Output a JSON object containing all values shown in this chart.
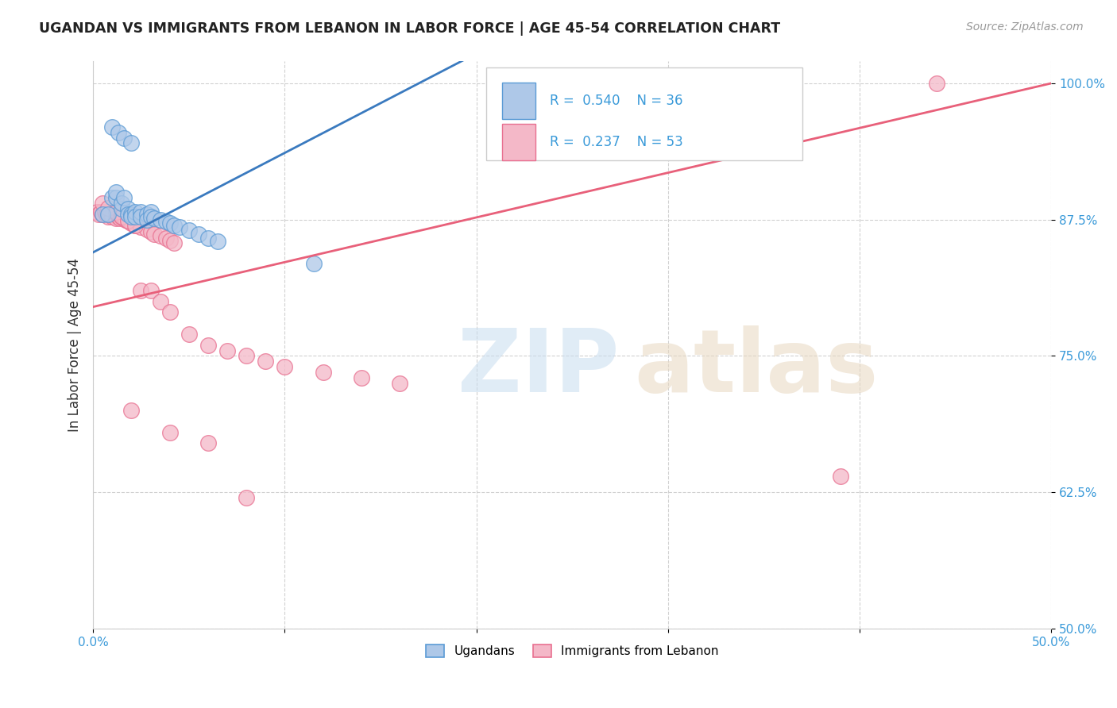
{
  "title": "UGANDAN VS IMMIGRANTS FROM LEBANON IN LABOR FORCE | AGE 45-54 CORRELATION CHART",
  "source_text": "Source: ZipAtlas.com",
  "ylabel": "In Labor Force | Age 45-54",
  "xlim": [
    0.0,
    0.5
  ],
  "ylim": [
    0.5,
    1.02
  ],
  "ytick_positions": [
    0.5,
    0.625,
    0.75,
    0.875,
    1.0
  ],
  "yticklabels": [
    "50.0%",
    "62.5%",
    "75.0%",
    "87.5%",
    "100.0%"
  ],
  "xtick_positions": [
    0.0,
    0.1,
    0.2,
    0.3,
    0.4,
    0.5
  ],
  "xticklabels": [
    "0.0%",
    "",
    "",
    "",
    "",
    "50.0%"
  ],
  "blue_R": 0.54,
  "blue_N": 36,
  "pink_R": 0.237,
  "pink_N": 53,
  "blue_color": "#aec8e8",
  "pink_color": "#f4b8c8",
  "blue_edge_color": "#5b9bd5",
  "pink_edge_color": "#e87090",
  "blue_line_color": "#3a7abf",
  "pink_line_color": "#e8607a",
  "legend_labels": [
    "Ugandans",
    "Immigrants from Lebanon"
  ],
  "blue_scatter_x": [
    0.005,
    0.008,
    0.01,
    0.012,
    0.012,
    0.015,
    0.015,
    0.016,
    0.018,
    0.018,
    0.02,
    0.02,
    0.022,
    0.022,
    0.025,
    0.025,
    0.028,
    0.028,
    0.03,
    0.03,
    0.032,
    0.035,
    0.038,
    0.04,
    0.042,
    0.045,
    0.05,
    0.055,
    0.06,
    0.065,
    0.01,
    0.013,
    0.016,
    0.02,
    0.115,
    0.27
  ],
  "blue_scatter_y": [
    0.88,
    0.88,
    0.895,
    0.895,
    0.9,
    0.885,
    0.89,
    0.895,
    0.885,
    0.88,
    0.88,
    0.878,
    0.882,
    0.878,
    0.882,
    0.878,
    0.88,
    0.875,
    0.882,
    0.878,
    0.876,
    0.875,
    0.873,
    0.872,
    0.87,
    0.868,
    0.865,
    0.862,
    0.858,
    0.855,
    0.96,
    0.955,
    0.95,
    0.945,
    0.835,
    0.97
  ],
  "pink_scatter_x": [
    0.002,
    0.003,
    0.004,
    0.005,
    0.006,
    0.007,
    0.008,
    0.009,
    0.01,
    0.01,
    0.012,
    0.013,
    0.014,
    0.015,
    0.016,
    0.017,
    0.018,
    0.019,
    0.02,
    0.022,
    0.025,
    0.028,
    0.03,
    0.032,
    0.035,
    0.038,
    0.04,
    0.042,
    0.005,
    0.008,
    0.012,
    0.015,
    0.018,
    0.022,
    0.025,
    0.03,
    0.035,
    0.04,
    0.05,
    0.06,
    0.07,
    0.08,
    0.09,
    0.1,
    0.12,
    0.14,
    0.16,
    0.02,
    0.04,
    0.06,
    0.08,
    0.44,
    0.39
  ],
  "pink_scatter_y": [
    0.882,
    0.88,
    0.882,
    0.88,
    0.882,
    0.88,
    0.878,
    0.88,
    0.88,
    0.878,
    0.876,
    0.878,
    0.876,
    0.878,
    0.876,
    0.875,
    0.874,
    0.873,
    0.872,
    0.87,
    0.868,
    0.866,
    0.864,
    0.862,
    0.86,
    0.858,
    0.856,
    0.854,
    0.89,
    0.886,
    0.882,
    0.878,
    0.874,
    0.87,
    0.81,
    0.81,
    0.8,
    0.79,
    0.77,
    0.76,
    0.755,
    0.75,
    0.745,
    0.74,
    0.735,
    0.73,
    0.725,
    0.7,
    0.68,
    0.67,
    0.62,
    1.0,
    0.64
  ]
}
